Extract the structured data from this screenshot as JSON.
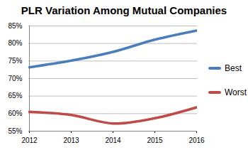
{
  "chart_data": {
    "type": "line",
    "title": "PLR Variation Among Mutual Companies",
    "categories": [
      "2012",
      "2013",
      "2014",
      "2015",
      "2016"
    ],
    "series": [
      {
        "name": "Best",
        "color": "#4a7ebb",
        "values": [
          73.2,
          75.1,
          77.6,
          81.1,
          83.7
        ]
      },
      {
        "name": "Worst",
        "color": "#be4b48",
        "values": [
          60.5,
          59.6,
          57.2,
          58.7,
          61.8
        ]
      }
    ],
    "ylim": [
      55,
      85
    ],
    "yticks": [
      {
        "value": 55,
        "label": "55%"
      },
      {
        "value": 60,
        "label": "60%"
      },
      {
        "value": 65,
        "label": "65%"
      },
      {
        "value": 70,
        "label": "70%"
      },
      {
        "value": 75,
        "label": "75%"
      },
      {
        "value": 80,
        "label": "80%"
      },
      {
        "value": 85,
        "label": "85%"
      }
    ],
    "grid": true,
    "legend": "right"
  }
}
